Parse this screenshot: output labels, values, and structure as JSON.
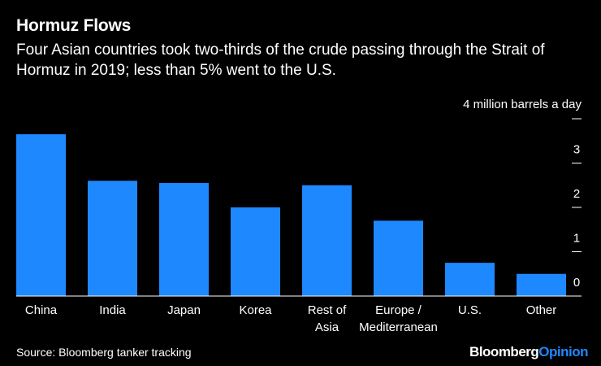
{
  "title": "Hormuz Flows",
  "subtitle": "Four Asian countries took two-thirds of the crude passing through the Strait of Hormuz in 2019; less than 5% went to the U.S.",
  "source": "Source: Bloomberg tanker tracking",
  "brand": {
    "part1": "Bloomberg",
    "part2": "Opinion"
  },
  "colors": {
    "background": "#000000",
    "bar": "#1e88ff",
    "text": "#ffffff",
    "brand_accent": "#1e88ff"
  },
  "chart_data": {
    "type": "bar",
    "title": "Hormuz Flows",
    "unit_label": "4 million barrels a day",
    "categories": [
      [
        "China"
      ],
      [
        "India"
      ],
      [
        "Japan"
      ],
      [
        "Korea"
      ],
      [
        "Rest of",
        "Asia"
      ],
      [
        "Europe /",
        "Mediterranean"
      ],
      [
        "U.S."
      ],
      [
        "Other"
      ]
    ],
    "values": [
      3.65,
      2.6,
      2.55,
      2.0,
      2.5,
      1.7,
      0.75,
      0.5
    ],
    "ylim": [
      0,
      4
    ],
    "yticks": [
      0,
      1,
      2,
      3,
      4
    ],
    "ytick_labels": [
      "0",
      "1",
      "2",
      "3",
      "4"
    ],
    "axis_position": "right",
    "grid": false
  }
}
